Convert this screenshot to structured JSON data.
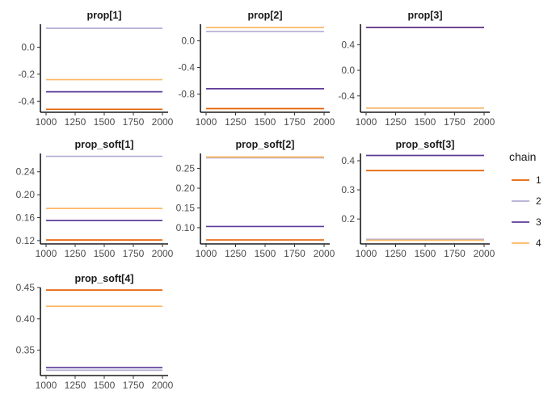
{
  "chart_data": {
    "type": "line",
    "x_range": [
      1000,
      2000
    ],
    "x_ticks": [
      1000,
      1250,
      1500,
      1750,
      2000
    ],
    "legend": {
      "title": "chain",
      "placement": "right",
      "entries": [
        {
          "label": "1",
          "color": "#E66101"
        },
        {
          "label": "2",
          "color": "#B2ABD2"
        },
        {
          "label": "3",
          "color": "#5E3C99"
        },
        {
          "label": "4",
          "color": "#FDB863"
        }
      ]
    },
    "panels": [
      {
        "title": "prop[1]",
        "ylim": [
          -0.47,
          0.17
        ],
        "yticks": [
          -0.4,
          -0.2,
          0.0
        ],
        "tick_labels": [
          "-0.4",
          "-0.2",
          "0.0"
        ],
        "series": [
          {
            "name": "1",
            "y": -0.46
          },
          {
            "name": "2",
            "y": 0.14
          },
          {
            "name": "3",
            "y": -0.33
          },
          {
            "name": "4",
            "y": -0.24
          }
        ]
      },
      {
        "title": "prop[2]",
        "ylim": [
          -1.05,
          0.25
        ],
        "yticks": [
          -0.8,
          -0.4,
          0.0
        ],
        "tick_labels": [
          "-0.8",
          "-0.4",
          "0.0"
        ],
        "series": [
          {
            "name": "1",
            "y": -1.02
          },
          {
            "name": "2",
            "y": 0.14
          },
          {
            "name": "3",
            "y": -0.72
          },
          {
            "name": "4",
            "y": 0.2
          }
        ]
      },
      {
        "title": "prop[3]",
        "ylim": [
          -0.63,
          0.72
        ],
        "yticks": [
          -0.4,
          0.0,
          0.4
        ],
        "tick_labels": [
          "-0.4",
          "0.0",
          "0.4"
        ],
        "series": [
          {
            "name": "1",
            "y": 0.67
          },
          {
            "name": "2",
            "y": -0.59
          },
          {
            "name": "3",
            "y": 0.67
          },
          {
            "name": "4",
            "y": -0.59
          }
        ]
      },
      {
        "title": "prop_soft[1]",
        "ylim": [
          0.117,
          0.272
        ],
        "yticks": [
          0.12,
          0.16,
          0.2,
          0.24
        ],
        "tick_labels": [
          "0.12",
          "0.16",
          "0.20",
          "0.24"
        ],
        "series": [
          {
            "name": "1",
            "y": 0.121
          },
          {
            "name": "2",
            "y": 0.267
          },
          {
            "name": "3",
            "y": 0.155
          },
          {
            "name": "4",
            "y": 0.176
          }
        ]
      },
      {
        "title": "prop_soft[2]",
        "ylim": [
          0.063,
          0.288
        ],
        "yticks": [
          0.1,
          0.15,
          0.2,
          0.25
        ],
        "tick_labels": [
          "0.10",
          "0.15",
          "0.20",
          "0.25"
        ],
        "series": [
          {
            "name": "1",
            "y": 0.069
          },
          {
            "name": "2",
            "y": 0.277
          },
          {
            "name": "3",
            "y": 0.103
          },
          {
            "name": "4",
            "y": 0.279
          }
        ]
      },
      {
        "title": "prop_soft[3]",
        "ylim": [
          0.12,
          0.425
        ],
        "yticks": [
          0.2,
          0.3,
          0.4
        ],
        "tick_labels": [
          "0.2",
          "0.3",
          "0.4"
        ],
        "series": [
          {
            "name": "1",
            "y": 0.366
          },
          {
            "name": "2",
            "y": 0.13
          },
          {
            "name": "3",
            "y": 0.418
          },
          {
            "name": "4",
            "y": 0.127
          }
        ]
      },
      {
        "title": "prop_soft[4]",
        "ylim": [
          0.312,
          0.45
        ],
        "yticks": [
          0.35,
          0.4,
          0.45
        ],
        "tick_labels": [
          "0.35",
          "0.40",
          "0.45"
        ],
        "series": [
          {
            "name": "1",
            "y": 0.446
          },
          {
            "name": "2",
            "y": 0.318
          },
          {
            "name": "3",
            "y": 0.322
          },
          {
            "name": "4",
            "y": 0.42
          }
        ]
      }
    ]
  }
}
